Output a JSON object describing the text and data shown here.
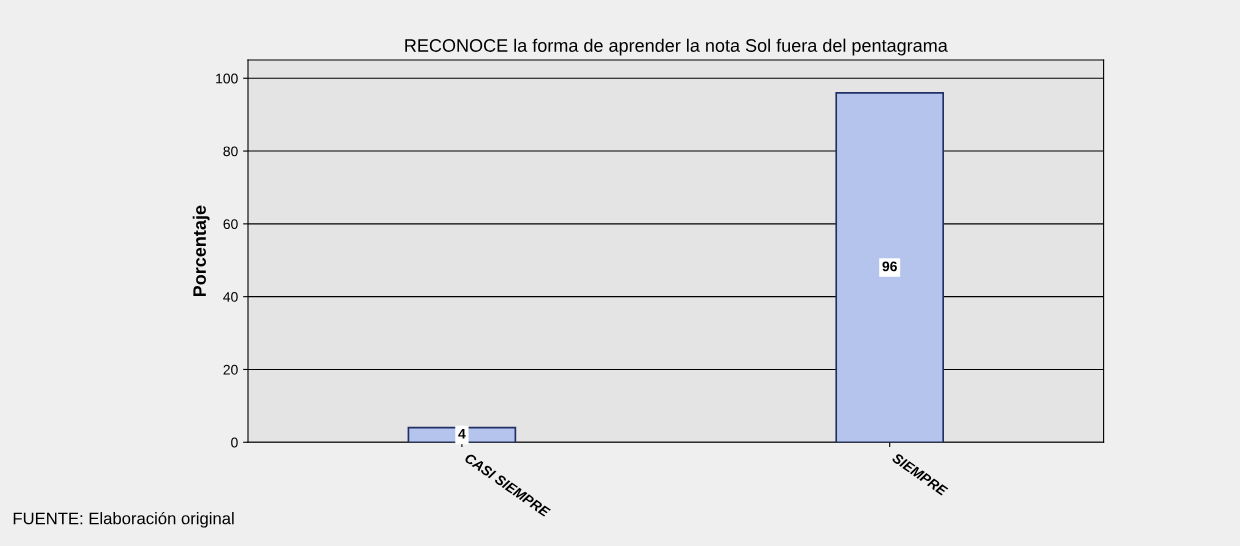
{
  "chart_data": {
    "type": "bar",
    "title": "RECONOCE la forma de aprender la nota Sol fuera del pentagrama",
    "ylabel": "Porcentaje",
    "categories": [
      "CASI SIEMPRE",
      "SIEMPRE"
    ],
    "series": [
      {
        "color": "#b4c4ec",
        "values": [
          4,
          96
        ]
      }
    ],
    "ylim": [
      0,
      105
    ],
    "yticks": [
      0,
      20,
      40,
      60,
      80,
      100
    ],
    "grid": "y",
    "data_labels": true,
    "legend": false,
    "annotations": [
      "FUENTE: Elaboración original"
    ]
  }
}
